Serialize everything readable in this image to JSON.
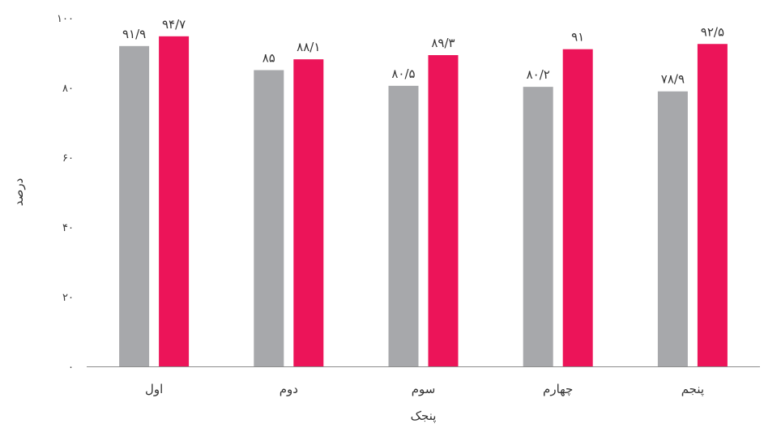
{
  "chart_data": {
    "type": "bar",
    "xlabel": "پنجک",
    "ylabel": "درصد",
    "ylim": [
      0,
      100
    ],
    "yticks": [
      0,
      20,
      40,
      60,
      80,
      100
    ],
    "ytick_labels": [
      "۰",
      "۲۰",
      "۴۰",
      "۶۰",
      "۸۰",
      "۱۰۰"
    ],
    "categories": [
      "اول",
      "دوم",
      "سوم",
      "چهارم",
      "پنجم"
    ],
    "series": [
      {
        "color": "#a7a8ab",
        "values": [
          91.9,
          85,
          80.5,
          80.2,
          78.9
        ],
        "labels": [
          "۹۱/۹",
          "۸۵",
          "۸۰/۵",
          "۸۰/۲",
          "۷۸/۹"
        ]
      },
      {
        "color": "#ec1459",
        "values": [
          94.7,
          88.1,
          89.3,
          91,
          92.5
        ],
        "labels": [
          "۹۴/۷",
          "۸۸/۱",
          "۸۹/۳",
          "۹۱",
          "۹۲/۵"
        ]
      }
    ],
    "grid": false,
    "legend": "none"
  }
}
